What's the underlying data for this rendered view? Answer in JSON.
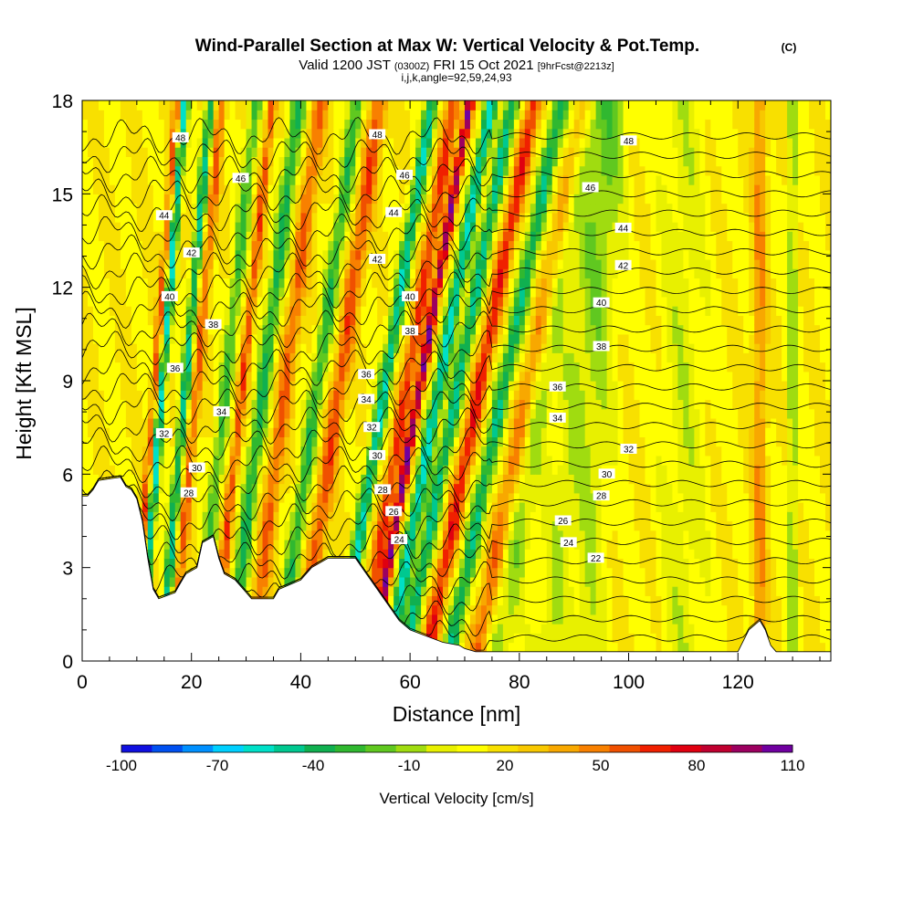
{
  "chart_data": {
    "type": "heatmap",
    "title": "Wind-Parallel Section at Max W: Vertical Velocity & Pot.Temp.",
    "title_unit": "(C)",
    "subtitle_valid": "Valid 1200 JST",
    "subtitle_utc": "(0300Z)",
    "subtitle_date": "FRI 15 Oct 2021",
    "subtitle_fcst": "[9hrFcst@2213z]",
    "subtitle_grid": "i,j,k,angle=92,59,24,93",
    "xlabel": "Distance [nm]",
    "ylabel": "Height [Kft MSL]",
    "xlim": [
      0,
      137
    ],
    "ylim": [
      0,
      18
    ],
    "x_ticks": [
      "0",
      "20",
      "40",
      "60",
      "80",
      "100",
      "120"
    ],
    "y_ticks": [
      "0",
      "3",
      "6",
      "9",
      "12",
      "15",
      "18"
    ],
    "colorbar": {
      "label": "Vertical Velocity [cm/s]",
      "tick_labels": [
        "-100",
        "-70",
        "-40",
        "-10",
        "20",
        "50",
        "80",
        "110"
      ],
      "range": [
        -100,
        110
      ],
      "colors": [
        "#1010e0",
        "#0050f0",
        "#0090ff",
        "#00d0ff",
        "#00e0c8",
        "#00c890",
        "#10b050",
        "#30b830",
        "#60c820",
        "#a0dc10",
        "#e8f000",
        "#ffff00",
        "#f8e000",
        "#f8c800",
        "#f8a800",
        "#f88000",
        "#f05000",
        "#f02000",
        "#e00010",
        "#c00030",
        "#9c0060",
        "#7000a0"
      ]
    },
    "terrain_kft": [
      [
        0,
        5.3
      ],
      [
        1,
        5.3
      ],
      [
        2,
        5.5
      ],
      [
        3,
        5.8
      ],
      [
        7,
        5.9
      ],
      [
        8,
        5.6
      ],
      [
        9,
        5.5
      ],
      [
        10,
        5.2
      ],
      [
        11,
        4.5
      ],
      [
        12,
        3.3
      ],
      [
        13,
        2.3
      ],
      [
        14,
        2.0
      ],
      [
        17,
        2.2
      ],
      [
        18,
        2.5
      ],
      [
        19,
        2.8
      ],
      [
        21,
        3.0
      ],
      [
        22,
        3.8
      ],
      [
        24,
        4.0
      ],
      [
        25,
        3.3
      ],
      [
        26,
        2.8
      ],
      [
        28,
        2.6
      ],
      [
        30,
        2.2
      ],
      [
        31,
        2.0
      ],
      [
        35,
        2.0
      ],
      [
        36,
        2.3
      ],
      [
        40,
        2.6
      ],
      [
        42,
        3.0
      ],
      [
        45,
        3.3
      ],
      [
        50,
        3.3
      ],
      [
        52,
        2.8
      ],
      [
        54,
        2.3
      ],
      [
        56,
        1.8
      ],
      [
        58,
        1.3
      ],
      [
        60,
        1.0
      ],
      [
        63,
        0.8
      ],
      [
        66,
        0.6
      ],
      [
        69,
        0.5
      ],
      [
        70,
        0.4
      ],
      [
        72,
        0.3
      ],
      [
        120,
        0.3
      ],
      [
        122,
        1.0
      ],
      [
        124,
        1.3
      ],
      [
        125,
        1.0
      ],
      [
        126,
        0.5
      ],
      [
        127,
        0.3
      ],
      [
        137,
        0.3
      ]
    ],
    "theta_labels": [
      {
        "text": "48",
        "x": 18,
        "y": 16.8
      },
      {
        "text": "46",
        "x": 29,
        "y": 15.5
      },
      {
        "text": "44",
        "x": 15,
        "y": 14.3
      },
      {
        "text": "42",
        "x": 20,
        "y": 13.1
      },
      {
        "text": "40",
        "x": 16,
        "y": 11.7
      },
      {
        "text": "38",
        "x": 24,
        "y": 10.8
      },
      {
        "text": "36",
        "x": 17,
        "y": 9.4
      },
      {
        "text": "34",
        "x": 25.5,
        "y": 8.0
      },
      {
        "text": "32",
        "x": 15,
        "y": 7.3
      },
      {
        "text": "30",
        "x": 21,
        "y": 6.2
      },
      {
        "text": "28",
        "x": 19.5,
        "y": 5.4
      },
      {
        "text": "48",
        "x": 54,
        "y": 16.9
      },
      {
        "text": "46",
        "x": 59,
        "y": 15.6
      },
      {
        "text": "44",
        "x": 57,
        "y": 14.4
      },
      {
        "text": "42",
        "x": 54,
        "y": 12.9
      },
      {
        "text": "40",
        "x": 60,
        "y": 11.7
      },
      {
        "text": "38",
        "x": 60,
        "y": 10.6
      },
      {
        "text": "36",
        "x": 52,
        "y": 9.2
      },
      {
        "text": "34",
        "x": 52,
        "y": 8.4
      },
      {
        "text": "32",
        "x": 53,
        "y": 7.5
      },
      {
        "text": "30",
        "x": 54,
        "y": 6.6
      },
      {
        "text": "28",
        "x": 55,
        "y": 5.5
      },
      {
        "text": "26",
        "x": 57,
        "y": 4.8
      },
      {
        "text": "24",
        "x": 58,
        "y": 3.9
      },
      {
        "text": "48",
        "x": 100,
        "y": 16.7
      },
      {
        "text": "46",
        "x": 93,
        "y": 15.2
      },
      {
        "text": "44",
        "x": 99,
        "y": 13.9
      },
      {
        "text": "42",
        "x": 99,
        "y": 12.7
      },
      {
        "text": "40",
        "x": 95,
        "y": 11.5
      },
      {
        "text": "38",
        "x": 95,
        "y": 10.1
      },
      {
        "text": "36",
        "x": 87,
        "y": 8.8
      },
      {
        "text": "34",
        "x": 87,
        "y": 7.8
      },
      {
        "text": "32",
        "x": 100,
        "y": 6.8
      },
      {
        "text": "30",
        "x": 96,
        "y": 6.0
      },
      {
        "text": "28",
        "x": 95,
        "y": 5.3
      },
      {
        "text": "26",
        "x": 88,
        "y": 4.5
      },
      {
        "text": "24",
        "x": 89,
        "y": 3.8
      },
      {
        "text": "22",
        "x": 94,
        "y": 3.3
      }
    ]
  }
}
